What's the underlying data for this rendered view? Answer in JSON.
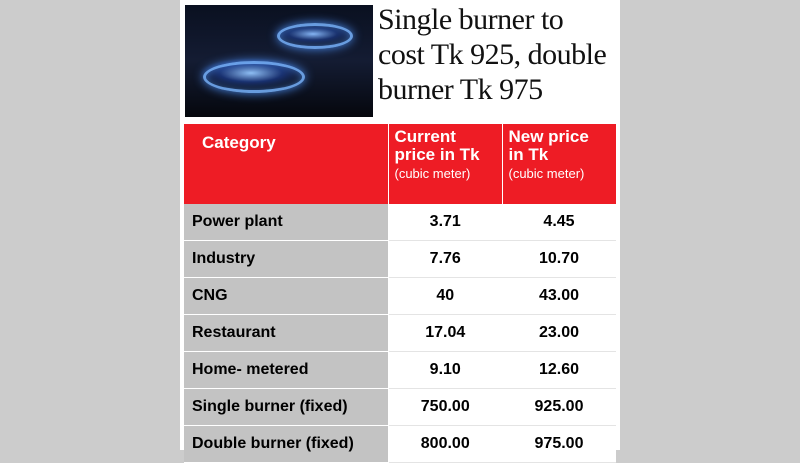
{
  "headline": {
    "line1": "Single burner to",
    "line2": "cost Tk 925, double",
    "line3": "burner Tk 975"
  },
  "table": {
    "headers": {
      "category": "Category",
      "current_line1": "Current",
      "current_line2": "price in Tk",
      "current_unit": "(cubic meter)",
      "new_line1": "New price",
      "new_line2": "in Tk",
      "new_unit": "(cubic meter)"
    },
    "rows": [
      {
        "category": "Power plant",
        "current": "3.71",
        "new": "4.45"
      },
      {
        "category": "Industry",
        "current": "7.76",
        "new": "10.70"
      },
      {
        "category": "CNG",
        "current": "40",
        "new": "43.00"
      },
      {
        "category": "Restaurant",
        "current": "17.04",
        "new": "23.00"
      },
      {
        "category": "Home- metered",
        "current": "9.10",
        "new": "12.60"
      },
      {
        "category": "Single burner (fixed)",
        "current": "750.00",
        "new": "925.00"
      },
      {
        "category": "Double burner (fixed)",
        "current": "800.00",
        "new": "975.00"
      }
    ]
  },
  "colors": {
    "header_bg": "#ee1c25",
    "category_bg": "#c3c3c3",
    "page_bg": "#cccccc"
  }
}
